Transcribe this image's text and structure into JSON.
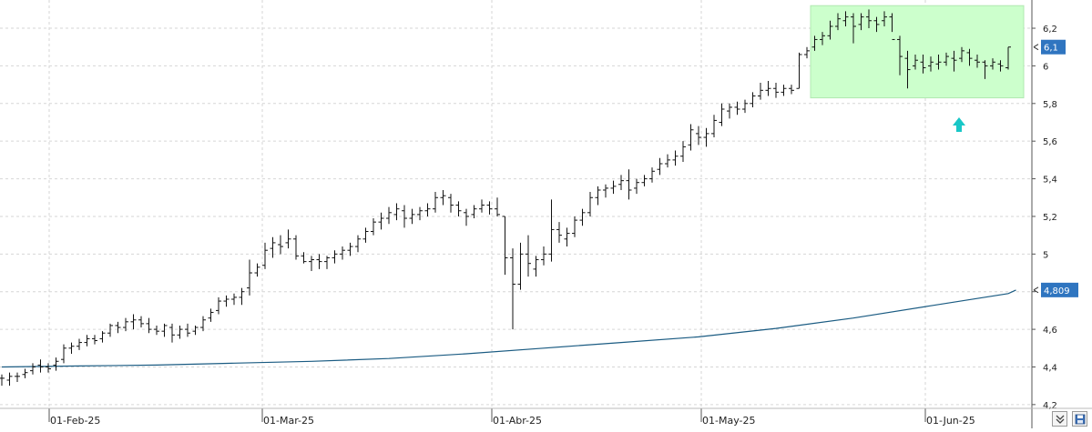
{
  "chart_data": {
    "type": "bar",
    "subtype": "ohlc",
    "grid": true,
    "ylim": [
      4.18,
      6.35
    ],
    "y_ticks": [
      "6,2",
      "6",
      "5,8",
      "5,6",
      "5,4",
      "5,2",
      "5",
      "4,8",
      "4,6",
      "4,4",
      "4,2"
    ],
    "y_tick_values": [
      6.2,
      6.0,
      5.8,
      5.6,
      5.4,
      5.2,
      5.0,
      4.8,
      4.6,
      4.4,
      4.2
    ],
    "x_ticks": [
      "01-Feb-25",
      "01-Mar-25",
      "01-Abr-25",
      "01-May-25",
      "01-Jun-25"
    ],
    "x_tick_index": [
      5,
      33,
      63,
      91,
      120
    ],
    "last_price_label": "6,1",
    "last_price": 6.1,
    "moving_average_label": "4,809",
    "moving_average_last": 4.809,
    "series": [
      {
        "kind": "ohlc",
        "points": [
          [
            4.34,
            4.36,
            4.3,
            4.34
          ],
          [
            4.33,
            4.37,
            4.3,
            4.35
          ],
          [
            4.35,
            4.37,
            4.32,
            4.35
          ],
          [
            4.36,
            4.39,
            4.34,
            4.37
          ],
          [
            4.38,
            4.42,
            4.36,
            4.4
          ],
          [
            4.41,
            4.44,
            4.37,
            4.4
          ],
          [
            4.4,
            4.42,
            4.37,
            4.39
          ],
          [
            4.41,
            4.45,
            4.38,
            4.43
          ],
          [
            4.44,
            4.52,
            4.42,
            4.5
          ],
          [
            4.5,
            4.53,
            4.47,
            4.51
          ],
          [
            4.51,
            4.55,
            4.49,
            4.53
          ],
          [
            4.53,
            4.57,
            4.51,
            4.55
          ],
          [
            4.55,
            4.57,
            4.52,
            4.54
          ],
          [
            4.55,
            4.59,
            4.53,
            4.58
          ],
          [
            4.58,
            4.63,
            4.56,
            4.62
          ],
          [
            4.62,
            4.64,
            4.58,
            4.61
          ],
          [
            4.61,
            4.66,
            4.59,
            4.64
          ],
          [
            4.64,
            4.68,
            4.6,
            4.65
          ],
          [
            4.65,
            4.67,
            4.61,
            4.63
          ],
          [
            4.63,
            4.66,
            4.58,
            4.6
          ],
          [
            4.6,
            4.62,
            4.57,
            4.59
          ],
          [
            4.59,
            4.63,
            4.56,
            4.62
          ],
          [
            4.61,
            4.63,
            4.53,
            4.57
          ],
          [
            4.57,
            4.62,
            4.55,
            4.6
          ],
          [
            4.6,
            4.63,
            4.56,
            4.58
          ],
          [
            4.59,
            4.62,
            4.57,
            4.61
          ],
          [
            4.61,
            4.67,
            4.59,
            4.65
          ],
          [
            4.66,
            4.71,
            4.64,
            4.69
          ],
          [
            4.7,
            4.77,
            4.68,
            4.75
          ],
          [
            4.75,
            4.78,
            4.72,
            4.76
          ],
          [
            4.76,
            4.79,
            4.73,
            4.77
          ],
          [
            4.77,
            4.82,
            4.73,
            4.8
          ],
          [
            4.82,
            4.97,
            4.78,
            4.9
          ],
          [
            4.9,
            4.95,
            4.88,
            4.93
          ],
          [
            4.94,
            5.06,
            4.92,
            5.02
          ],
          [
            5.03,
            5.09,
            4.98,
            5.06
          ],
          [
            5.05,
            5.1,
            5.0,
            5.04
          ],
          [
            5.06,
            5.13,
            5.03,
            5.08
          ],
          [
            5.08,
            5.1,
            4.97,
            4.99
          ],
          [
            4.99,
            5.01,
            4.95,
            4.96
          ],
          [
            4.96,
            4.99,
            4.91,
            4.97
          ],
          [
            4.97,
            5.0,
            4.92,
            4.96
          ],
          [
            4.96,
            4.99,
            4.92,
            4.98
          ],
          [
            4.98,
            5.02,
            4.95,
            5.0
          ],
          [
            5.0,
            5.04,
            4.97,
            5.02
          ],
          [
            5.02,
            5.06,
            4.99,
            5.04
          ],
          [
            5.04,
            5.1,
            5.01,
            5.08
          ],
          [
            5.08,
            5.14,
            5.06,
            5.12
          ],
          [
            5.12,
            5.19,
            5.1,
            5.17
          ],
          [
            5.17,
            5.22,
            5.13,
            5.19
          ],
          [
            5.19,
            5.25,
            5.16,
            5.22
          ],
          [
            5.21,
            5.27,
            5.18,
            5.24
          ],
          [
            5.23,
            5.26,
            5.14,
            5.19
          ],
          [
            5.19,
            5.24,
            5.16,
            5.21
          ],
          [
            5.21,
            5.25,
            5.18,
            5.23
          ],
          [
            5.23,
            5.27,
            5.2,
            5.24
          ],
          [
            5.24,
            5.33,
            5.22,
            5.3
          ],
          [
            5.3,
            5.34,
            5.26,
            5.31
          ],
          [
            5.3,
            5.32,
            5.22,
            5.26
          ],
          [
            5.26,
            5.28,
            5.2,
            5.23
          ],
          [
            5.22,
            5.24,
            5.15,
            5.2
          ],
          [
            5.21,
            5.26,
            5.19,
            5.24
          ],
          [
            5.24,
            5.29,
            5.22,
            5.26
          ],
          [
            5.26,
            5.28,
            5.21,
            5.24
          ],
          [
            5.24,
            5.3,
            5.2,
            5.21
          ],
          [
            5.2,
            5.2,
            4.89,
            4.98
          ],
          [
            4.98,
            5.03,
            4.6,
            4.84
          ],
          [
            4.84,
            5.06,
            4.81,
            5.0
          ],
          [
            5.0,
            5.1,
            4.88,
            4.95
          ],
          [
            4.92,
            4.99,
            4.88,
            4.97
          ],
          [
            4.97,
            5.04,
            4.94,
            5.0
          ],
          [
            5.0,
            5.29,
            4.96,
            5.13
          ],
          [
            5.13,
            5.17,
            5.06,
            5.1
          ],
          [
            5.08,
            5.14,
            5.04,
            5.11
          ],
          [
            5.11,
            5.2,
            5.09,
            5.18
          ],
          [
            5.18,
            5.24,
            5.15,
            5.22
          ],
          [
            5.22,
            5.33,
            5.2,
            5.3
          ],
          [
            5.3,
            5.36,
            5.26,
            5.34
          ],
          [
            5.34,
            5.37,
            5.3,
            5.35
          ],
          [
            5.35,
            5.39,
            5.32,
            5.36
          ],
          [
            5.37,
            5.42,
            5.34,
            5.39
          ],
          [
            5.39,
            5.45,
            5.29,
            5.34
          ],
          [
            5.35,
            5.4,
            5.32,
            5.38
          ],
          [
            5.38,
            5.42,
            5.36,
            5.4
          ],
          [
            5.4,
            5.46,
            5.38,
            5.44
          ],
          [
            5.45,
            5.51,
            5.42,
            5.48
          ],
          [
            5.48,
            5.53,
            5.46,
            5.5
          ],
          [
            5.5,
            5.55,
            5.47,
            5.52
          ],
          [
            5.52,
            5.6,
            5.49,
            5.57
          ],
          [
            5.58,
            5.69,
            5.55,
            5.66
          ],
          [
            5.64,
            5.68,
            5.58,
            5.62
          ],
          [
            5.62,
            5.67,
            5.57,
            5.64
          ],
          [
            5.64,
            5.74,
            5.62,
            5.71
          ],
          [
            5.7,
            5.8,
            5.68,
            5.77
          ],
          [
            5.76,
            5.8,
            5.72,
            5.78
          ],
          [
            5.78,
            5.81,
            5.74,
            5.77
          ],
          [
            5.77,
            5.82,
            5.75,
            5.8
          ],
          [
            5.8,
            5.86,
            5.78,
            5.84
          ],
          [
            5.84,
            5.91,
            5.82,
            5.87
          ],
          [
            5.87,
            5.92,
            5.84,
            5.88
          ],
          [
            5.88,
            5.91,
            5.83,
            5.86
          ],
          [
            5.86,
            5.9,
            5.84,
            5.88
          ],
          [
            5.88,
            5.9,
            5.85,
            5.87
          ],
          [
            5.88,
            6.07,
            5.88,
            6.06
          ],
          [
            6.06,
            6.1,
            6.04,
            6.08
          ],
          [
            6.1,
            6.16,
            6.08,
            6.14
          ],
          [
            6.14,
            6.18,
            6.11,
            6.16
          ],
          [
            6.16,
            6.24,
            6.14,
            6.21
          ],
          [
            6.21,
            6.28,
            6.19,
            6.25
          ],
          [
            6.24,
            6.29,
            6.21,
            6.26
          ],
          [
            6.26,
            6.28,
            6.12,
            6.21
          ],
          [
            6.22,
            6.28,
            6.19,
            6.26
          ],
          [
            6.26,
            6.3,
            6.2,
            6.24
          ],
          [
            6.24,
            6.26,
            6.18,
            6.22
          ],
          [
            6.24,
            6.29,
            6.21,
            6.26
          ],
          [
            6.26,
            6.28,
            6.18,
            6.14
          ],
          [
            6.14,
            6.16,
            5.95,
            6.05
          ],
          [
            6.04,
            6.08,
            5.88,
            5.98
          ],
          [
            6.0,
            6.06,
            5.98,
            6.03
          ],
          [
            6.02,
            6.06,
            5.96,
            5.99
          ],
          [
            6.0,
            6.05,
            5.97,
            6.02
          ],
          [
            6.01,
            6.06,
            5.98,
            6.02
          ],
          [
            6.02,
            6.07,
            6.0,
            6.05
          ],
          [
            6.04,
            6.08,
            5.97,
            6.03
          ],
          [
            6.04,
            6.1,
            6.02,
            6.08
          ],
          [
            6.07,
            6.09,
            6.0,
            6.04
          ],
          [
            6.03,
            6.06,
            5.99,
            6.02
          ],
          [
            6.02,
            6.03,
            5.93,
            6.0
          ],
          [
            6.0,
            6.04,
            5.98,
            6.02
          ],
          [
            6.01,
            6.03,
            5.97,
            6.0
          ],
          [
            5.99,
            6.1,
            5.98,
            6.1
          ]
        ]
      },
      {
        "kind": "moving_average",
        "points": [
          [
            0,
            4.4
          ],
          [
            10,
            4.405
          ],
          [
            20,
            4.41
          ],
          [
            30,
            4.42
          ],
          [
            40,
            4.43
          ],
          [
            50,
            4.445
          ],
          [
            60,
            4.47
          ],
          [
            70,
            4.5
          ],
          [
            80,
            4.53
          ],
          [
            90,
            4.56
          ],
          [
            100,
            4.605
          ],
          [
            110,
            4.66
          ],
          [
            120,
            4.725
          ],
          [
            130,
            4.79
          ],
          [
            131,
            4.809
          ]
        ]
      }
    ],
    "highlight_range": {
      "from_index": 103,
      "to_index": 131,
      "y_from": 5.83,
      "y_to": 6.32
    },
    "highlight_color": "#ccffcc",
    "arrow_color": "#19c7c7",
    "price_badge_color": "#2f75c0",
    "ma_color": "#1a5b82"
  },
  "colors": {
    "bar": "#111111",
    "axis": "#555555",
    "grid": "#d6d6d6"
  },
  "toolbar": {
    "collapse_icon": "double-chevron-down-icon",
    "save_icon": "floppy-disk-icon"
  }
}
